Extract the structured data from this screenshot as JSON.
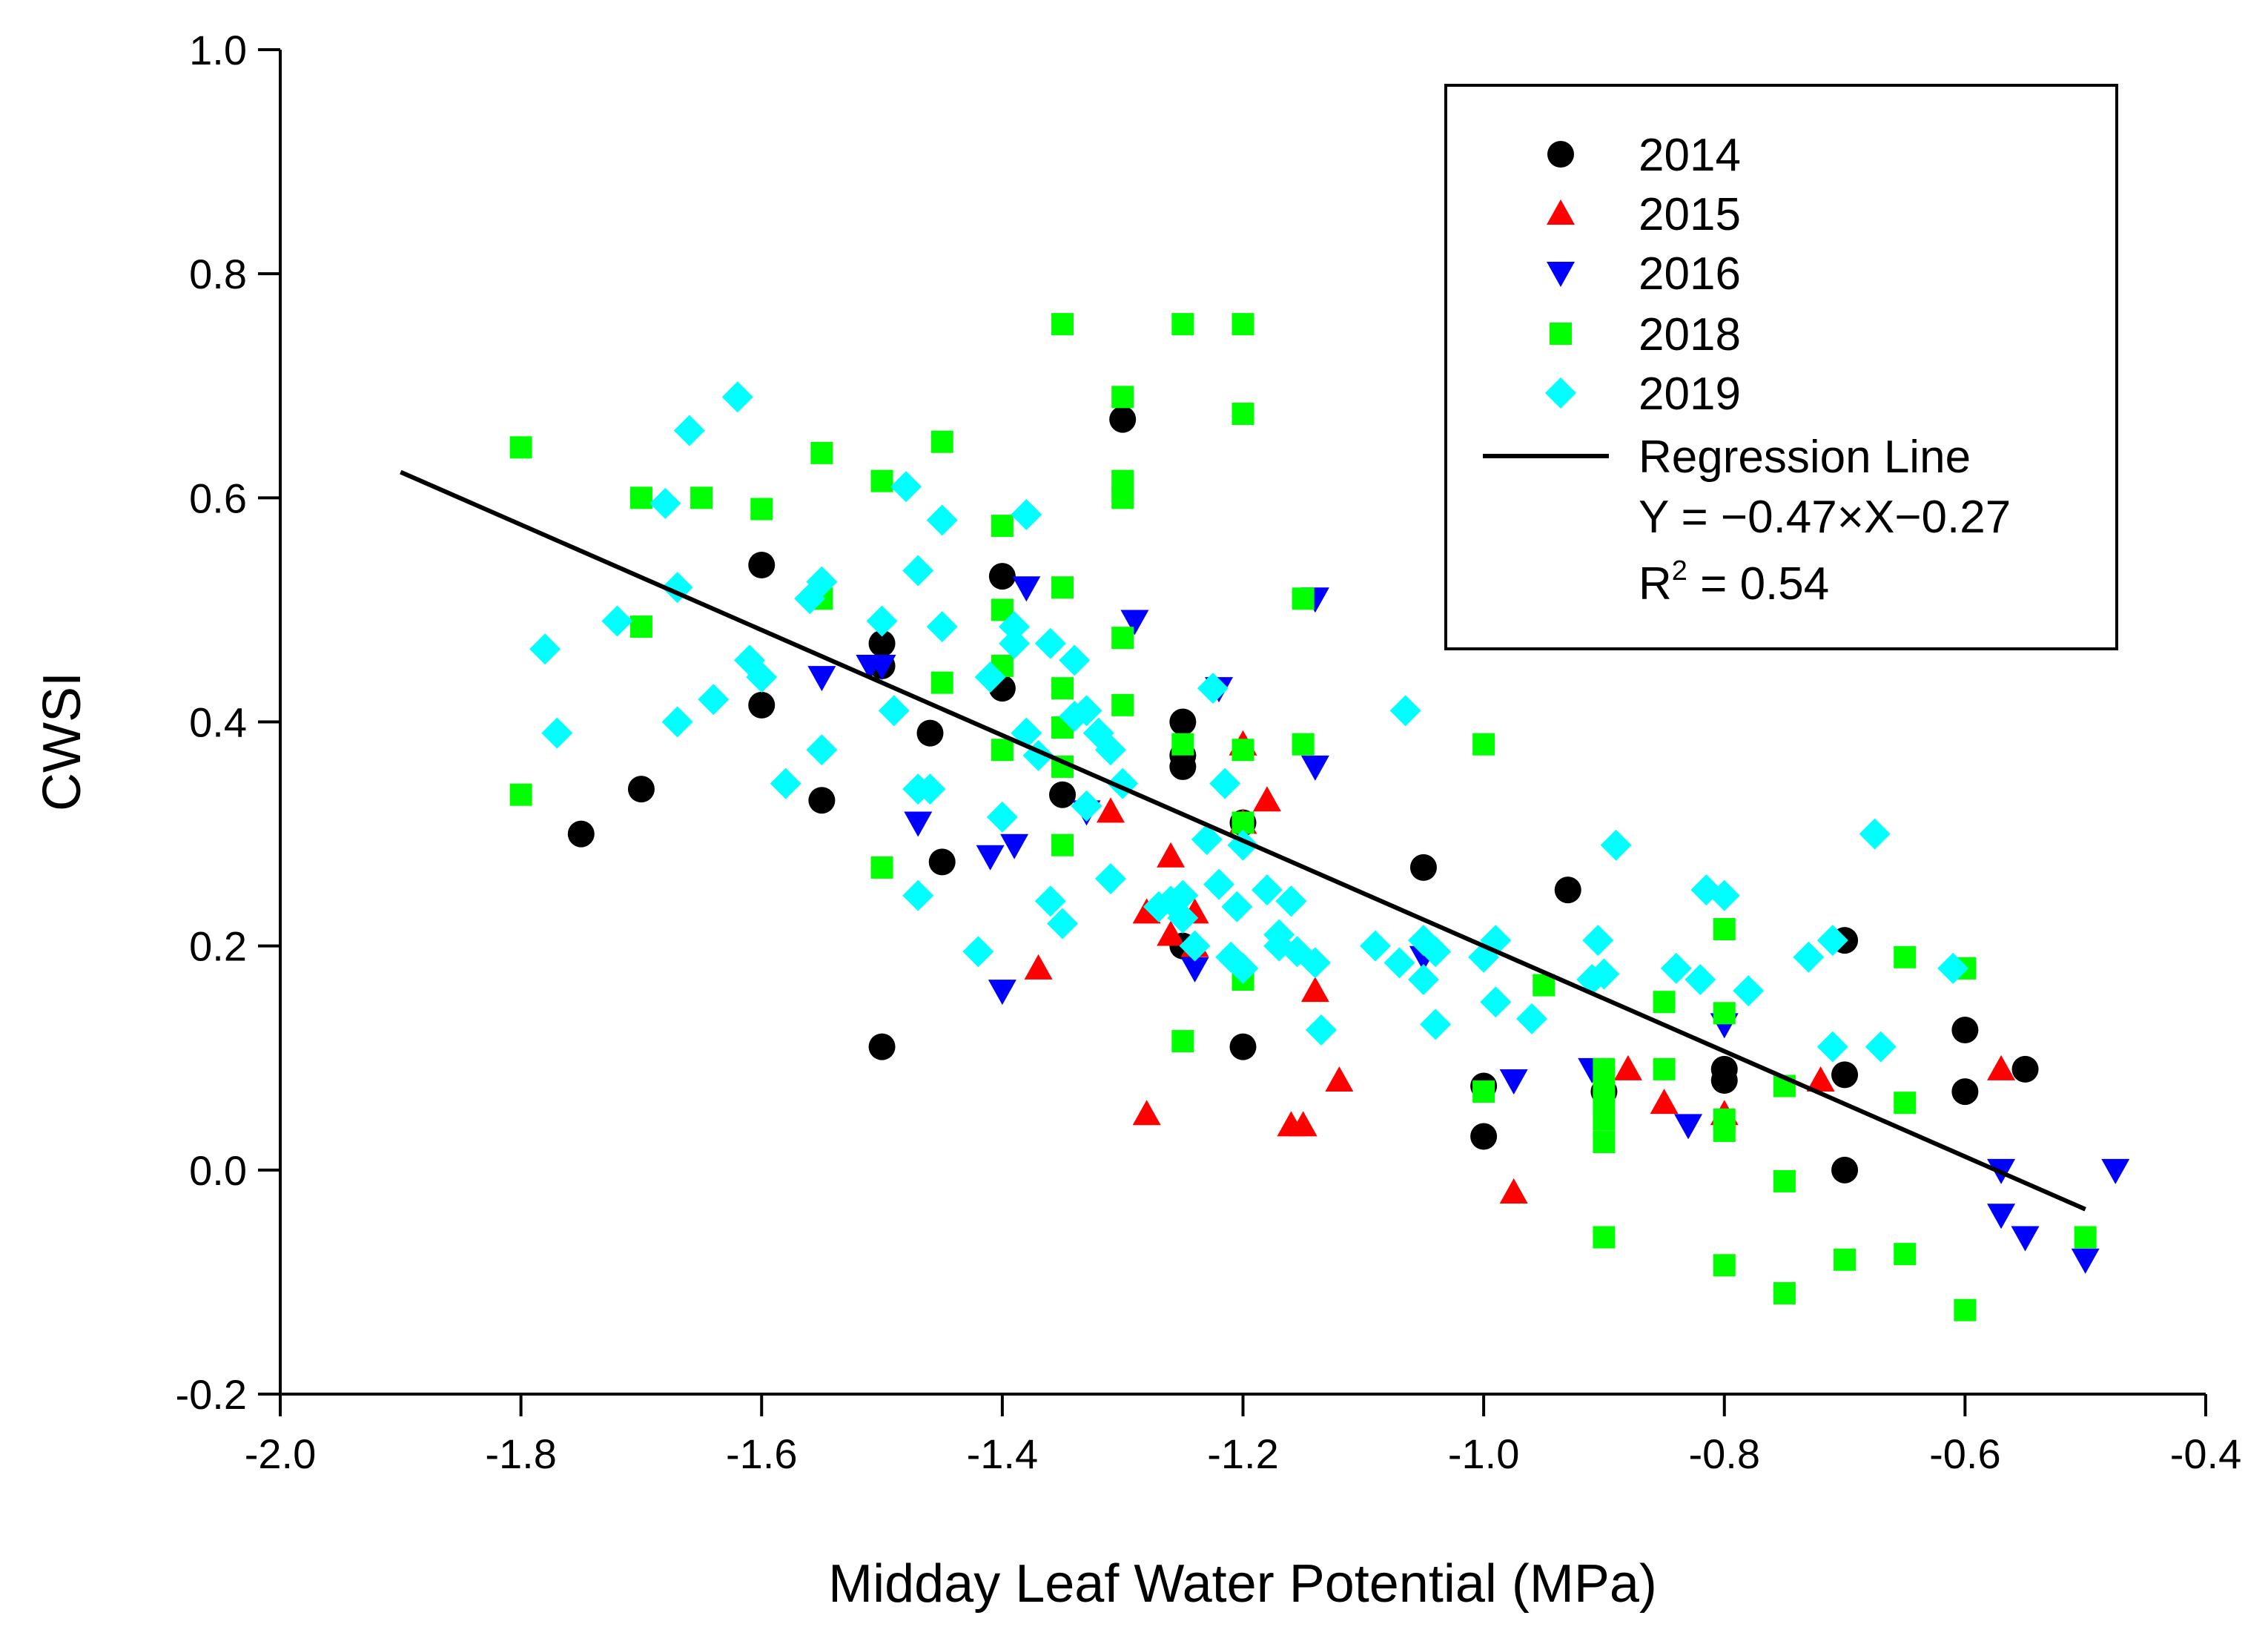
{
  "chart_data": {
    "type": "scatter",
    "xlabel": "Midday Leaf Water Potential (MPa)",
    "ylabel": "CWSI",
    "xlim": [
      -2.0,
      -0.4
    ],
    "ylim": [
      -0.2,
      1.0
    ],
    "x_ticks": [
      -2.0,
      -1.8,
      -1.6,
      -1.4,
      -1.2,
      -1.0,
      -0.8,
      -0.6,
      -0.4
    ],
    "y_ticks": [
      -0.2,
      0.0,
      0.2,
      0.4,
      0.6,
      0.8,
      1.0
    ],
    "x_tick_labels": [
      "-2.0",
      "-1.8",
      "-1.6",
      "-1.4",
      "-1.2",
      "-1.0",
      "-0.8",
      "-0.6",
      "-0.4"
    ],
    "y_tick_labels": [
      "-0.2",
      "0.0",
      "0.2",
      "0.4",
      "0.6",
      "0.8",
      "1.0"
    ],
    "grid": false,
    "legend_position": "top-right",
    "series": [
      {
        "name": "2014",
        "marker": "circle",
        "color": "#000000",
        "points": [
          [
            -1.75,
            0.3
          ],
          [
            -1.7,
            0.34
          ],
          [
            -1.6,
            0.54
          ],
          [
            -1.6,
            0.415
          ],
          [
            -1.55,
            0.33
          ],
          [
            -1.5,
            0.47
          ],
          [
            -1.5,
            0.45
          ],
          [
            -1.5,
            0.11
          ],
          [
            -1.46,
            0.39
          ],
          [
            -1.45,
            0.275
          ],
          [
            -1.4,
            0.53
          ],
          [
            -1.4,
            0.43
          ],
          [
            -1.35,
            0.335
          ],
          [
            -1.3,
            0.67
          ],
          [
            -1.25,
            0.4
          ],
          [
            -1.25,
            0.37
          ],
          [
            -1.25,
            0.36
          ],
          [
            -1.25,
            0.2
          ],
          [
            -1.2,
            0.31
          ],
          [
            -1.2,
            0.11
          ],
          [
            -1.05,
            0.27
          ],
          [
            -1.0,
            0.075
          ],
          [
            -1.0,
            0.03
          ],
          [
            -0.93,
            0.25
          ],
          [
            -0.9,
            0.07
          ],
          [
            -0.8,
            0.09
          ],
          [
            -0.8,
            0.08
          ],
          [
            -0.7,
            0.205
          ],
          [
            -0.7,
            0.085
          ],
          [
            -0.7,
            0.0
          ],
          [
            -0.6,
            0.125
          ],
          [
            -0.6,
            0.07
          ],
          [
            -0.55,
            0.09
          ]
        ]
      },
      {
        "name": "2015",
        "marker": "triangle-up",
        "color": "#ff0000",
        "points": [
          [
            -1.37,
            0.18
          ],
          [
            -1.31,
            0.32
          ],
          [
            -1.28,
            0.23
          ],
          [
            -1.28,
            0.05
          ],
          [
            -1.26,
            0.28
          ],
          [
            -1.26,
            0.21
          ],
          [
            -1.24,
            0.23
          ],
          [
            -1.24,
            0.2
          ],
          [
            -1.2,
            0.38
          ],
          [
            -1.2,
            0.31
          ],
          [
            -1.18,
            0.33
          ],
          [
            -1.16,
            0.04
          ],
          [
            -1.15,
            0.04
          ],
          [
            -1.14,
            0.16
          ],
          [
            -1.12,
            0.08
          ],
          [
            -0.975,
            -0.02
          ],
          [
            -0.88,
            0.09
          ],
          [
            -0.85,
            0.06
          ],
          [
            -0.8,
            0.05
          ],
          [
            -0.72,
            0.08
          ],
          [
            -0.57,
            0.09
          ]
        ]
      },
      {
        "name": "2016",
        "marker": "triangle-down",
        "color": "#0000ff",
        "points": [
          [
            -1.55,
            0.44
          ],
          [
            -1.5,
            0.45
          ],
          [
            -1.51,
            0.45
          ],
          [
            -1.47,
            0.31
          ],
          [
            -1.41,
            0.28
          ],
          [
            -1.4,
            0.16
          ],
          [
            -1.39,
            0.29
          ],
          [
            -1.38,
            0.52
          ],
          [
            -1.33,
            0.32
          ],
          [
            -1.29,
            0.49
          ],
          [
            -1.24,
            0.18
          ],
          [
            -1.22,
            0.43
          ],
          [
            -1.14,
            0.51
          ],
          [
            -1.14,
            0.36
          ],
          [
            -1.05,
            0.19
          ],
          [
            -0.975,
            0.08
          ],
          [
            -0.91,
            0.09
          ],
          [
            -0.83,
            0.04
          ],
          [
            -0.8,
            0.13
          ],
          [
            -0.57,
            0.0
          ],
          [
            -0.57,
            -0.04
          ],
          [
            -0.55,
            -0.06
          ],
          [
            -0.5,
            -0.08
          ],
          [
            -0.475,
            0.0
          ]
        ]
      },
      {
        "name": "2018",
        "marker": "square",
        "color": "#00ff00",
        "points": [
          [
            -1.8,
            0.645
          ],
          [
            -1.8,
            0.335
          ],
          [
            -1.7,
            0.6
          ],
          [
            -1.7,
            0.485
          ],
          [
            -1.65,
            0.6
          ],
          [
            -1.6,
            0.59
          ],
          [
            -1.55,
            0.64
          ],
          [
            -1.55,
            0.51
          ],
          [
            -1.5,
            0.615
          ],
          [
            -1.5,
            0.27
          ],
          [
            -1.45,
            0.65
          ],
          [
            -1.45,
            0.435
          ],
          [
            -1.4,
            0.575
          ],
          [
            -1.4,
            0.5
          ],
          [
            -1.4,
            0.45
          ],
          [
            -1.4,
            0.375
          ],
          [
            -1.35,
            0.755
          ],
          [
            -1.35,
            0.52
          ],
          [
            -1.35,
            0.43
          ],
          [
            -1.35,
            0.395
          ],
          [
            -1.35,
            0.36
          ],
          [
            -1.35,
            0.29
          ],
          [
            -1.3,
            0.69
          ],
          [
            -1.3,
            0.615
          ],
          [
            -1.3,
            0.6
          ],
          [
            -1.3,
            0.475
          ],
          [
            -1.3,
            0.415
          ],
          [
            -1.25,
            0.755
          ],
          [
            -1.25,
            0.38
          ],
          [
            -1.25,
            0.115
          ],
          [
            -1.2,
            0.755
          ],
          [
            -1.2,
            0.675
          ],
          [
            -1.2,
            0.375
          ],
          [
            -1.2,
            0.31
          ],
          [
            -1.2,
            0.17
          ],
          [
            -1.15,
            0.51
          ],
          [
            -1.15,
            0.38
          ],
          [
            -1.0,
            0.38
          ],
          [
            -1.0,
            0.07
          ],
          [
            -0.95,
            0.165
          ],
          [
            -0.9,
            0.09
          ],
          [
            -0.9,
            0.075
          ],
          [
            -0.9,
            0.06
          ],
          [
            -0.9,
            0.045
          ],
          [
            -0.9,
            0.025
          ],
          [
            -0.9,
            -0.06
          ],
          [
            -0.85,
            0.15
          ],
          [
            -0.85,
            0.09
          ],
          [
            -0.8,
            0.215
          ],
          [
            -0.8,
            0.14
          ],
          [
            -0.8,
            0.045
          ],
          [
            -0.8,
            0.035
          ],
          [
            -0.8,
            -0.085
          ],
          [
            -0.75,
            0.075
          ],
          [
            -0.75,
            -0.01
          ],
          [
            -0.75,
            -0.11
          ],
          [
            -0.7,
            -0.08
          ],
          [
            -0.65,
            0.19
          ],
          [
            -0.65,
            0.06
          ],
          [
            -0.65,
            -0.075
          ],
          [
            -0.6,
            0.18
          ],
          [
            -0.6,
            -0.125
          ],
          [
            -0.5,
            -0.06
          ]
        ]
      },
      {
        "name": "2019",
        "marker": "diamond",
        "color": "#00ffff",
        "points": [
          [
            -1.78,
            0.465
          ],
          [
            -1.77,
            0.39
          ],
          [
            -1.72,
            0.49
          ],
          [
            -1.68,
            0.595
          ],
          [
            -1.67,
            0.52
          ],
          [
            -1.67,
            0.4
          ],
          [
            -1.66,
            0.66
          ],
          [
            -1.64,
            0.42
          ],
          [
            -1.62,
            0.69
          ],
          [
            -1.61,
            0.455
          ],
          [
            -1.6,
            0.44
          ],
          [
            -1.58,
            0.345
          ],
          [
            -1.56,
            0.51
          ],
          [
            -1.55,
            0.525
          ],
          [
            -1.55,
            0.375
          ],
          [
            -1.5,
            0.49
          ],
          [
            -1.49,
            0.41
          ],
          [
            -1.48,
            0.61
          ],
          [
            -1.47,
            0.535
          ],
          [
            -1.47,
            0.34
          ],
          [
            -1.47,
            0.245
          ],
          [
            -1.46,
            0.34
          ],
          [
            -1.45,
            0.58
          ],
          [
            -1.45,
            0.485
          ],
          [
            -1.42,
            0.195
          ],
          [
            -1.41,
            0.44
          ],
          [
            -1.4,
            0.315
          ],
          [
            -1.39,
            0.485
          ],
          [
            -1.39,
            0.47
          ],
          [
            -1.38,
            0.585
          ],
          [
            -1.38,
            0.39
          ],
          [
            -1.37,
            0.37
          ],
          [
            -1.36,
            0.47
          ],
          [
            -1.36,
            0.24
          ],
          [
            -1.35,
            0.22
          ],
          [
            -1.34,
            0.455
          ],
          [
            -1.34,
            0.405
          ],
          [
            -1.33,
            0.41
          ],
          [
            -1.33,
            0.325
          ],
          [
            -1.32,
            0.39
          ],
          [
            -1.31,
            0.375
          ],
          [
            -1.31,
            0.26
          ],
          [
            -1.3,
            0.345
          ],
          [
            -1.27,
            0.235
          ],
          [
            -1.26,
            0.24
          ],
          [
            -1.25,
            0.245
          ],
          [
            -1.25,
            0.225
          ],
          [
            -1.24,
            0.2
          ],
          [
            -1.23,
            0.295
          ],
          [
            -1.225,
            0.43
          ],
          [
            -1.22,
            0.255
          ],
          [
            -1.215,
            0.345
          ],
          [
            -1.21,
            0.19
          ],
          [
            -1.205,
            0.235
          ],
          [
            -1.2,
            0.29
          ],
          [
            -1.2,
            0.18
          ],
          [
            -1.18,
            0.25
          ],
          [
            -1.17,
            0.21
          ],
          [
            -1.17,
            0.2
          ],
          [
            -1.16,
            0.24
          ],
          [
            -1.16,
            0.24
          ],
          [
            -1.155,
            0.195
          ],
          [
            -1.14,
            0.185
          ],
          [
            -1.135,
            0.125
          ],
          [
            -1.09,
            0.2
          ],
          [
            -1.07,
            0.185
          ],
          [
            -1.065,
            0.41
          ],
          [
            -1.05,
            0.205
          ],
          [
            -1.05,
            0.17
          ],
          [
            -1.04,
            0.195
          ],
          [
            -1.04,
            0.13
          ],
          [
            -1.0,
            0.19
          ],
          [
            -0.99,
            0.205
          ],
          [
            -0.99,
            0.15
          ],
          [
            -0.96,
            0.135
          ],
          [
            -0.91,
            0.17
          ],
          [
            -0.905,
            0.205
          ],
          [
            -0.9,
            0.175
          ],
          [
            -0.89,
            0.29
          ],
          [
            -0.84,
            0.18
          ],
          [
            -0.82,
            0.17
          ],
          [
            -0.815,
            0.25
          ],
          [
            -0.8,
            0.245
          ],
          [
            -0.78,
            0.16
          ],
          [
            -0.73,
            0.19
          ],
          [
            -0.71,
            0.205
          ],
          [
            -0.71,
            0.11
          ],
          [
            -0.675,
            0.3
          ],
          [
            -0.67,
            0.11
          ],
          [
            -0.61,
            0.18
          ]
        ]
      }
    ],
    "regression": {
      "label": "Regression Line",
      "equation": "Y = −0.47×X−0.27",
      "r2_prefix": "R",
      "r2_sup": "2",
      "r2_value": " = 0.54",
      "slope": -0.47,
      "intercept": -0.27,
      "x_range": [
        -1.9,
        -0.5
      ]
    }
  }
}
